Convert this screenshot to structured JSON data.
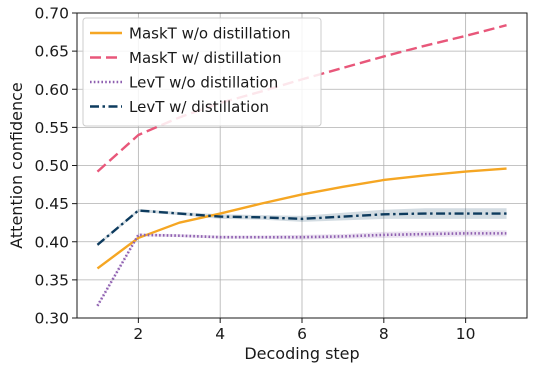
{
  "chart_data": {
    "type": "line",
    "xlabel": "Decoding step",
    "ylabel": "Attention confidence",
    "xlim": [
      0.5,
      11.5
    ],
    "ylim": [
      0.3,
      0.7
    ],
    "x_ticks": [
      2,
      4,
      6,
      8,
      10
    ],
    "y_ticks": [
      0.3,
      0.35,
      0.4,
      0.45,
      0.5,
      0.55,
      0.6,
      0.65,
      0.7
    ],
    "x_tick_labels": [
      "2",
      "4",
      "6",
      "8",
      "10"
    ],
    "y_tick_labels": [
      "0.30",
      "0.35",
      "0.40",
      "0.45",
      "0.50",
      "0.55",
      "0.60",
      "0.65",
      "0.70"
    ],
    "grid": true,
    "legend_position": "top-left",
    "x": [
      1,
      2,
      3,
      4,
      5,
      6,
      7,
      8,
      9,
      10,
      11
    ],
    "series": [
      {
        "name": "MaskT w/o distillation",
        "color": "#f5a623",
        "style": "solid",
        "values": [
          0.365,
          0.405,
          0.425,
          0.437,
          0.45,
          0.462,
          0.472,
          0.481,
          0.487,
          0.492,
          0.496
        ]
      },
      {
        "name": "MaskT w/ distillation",
        "color": "#e8577a",
        "style": "dashed",
        "values": [
          0.492,
          0.54,
          0.563,
          0.582,
          0.597,
          0.613,
          0.628,
          0.643,
          0.657,
          0.67,
          0.684
        ]
      },
      {
        "name": "LevT w/o distillation",
        "color": "#8e5fb0",
        "style": "dotted",
        "values": [
          0.316,
          0.409,
          0.408,
          0.406,
          0.406,
          0.406,
          0.407,
          0.409,
          0.41,
          0.411,
          0.411
        ],
        "band": [
          0.002,
          0.002,
          0.002,
          0.002,
          0.002,
          0.003,
          0.003,
          0.004,
          0.004,
          0.004,
          0.004
        ]
      },
      {
        "name": "LevT w/ distillation",
        "color": "#0d3b5e",
        "style": "dashdot",
        "values": [
          0.396,
          0.441,
          0.437,
          0.433,
          0.432,
          0.43,
          0.433,
          0.436,
          0.437,
          0.437,
          0.437
        ],
        "band": [
          0.002,
          0.002,
          0.002,
          0.003,
          0.003,
          0.004,
          0.005,
          0.006,
          0.007,
          0.007,
          0.007
        ]
      }
    ]
  }
}
